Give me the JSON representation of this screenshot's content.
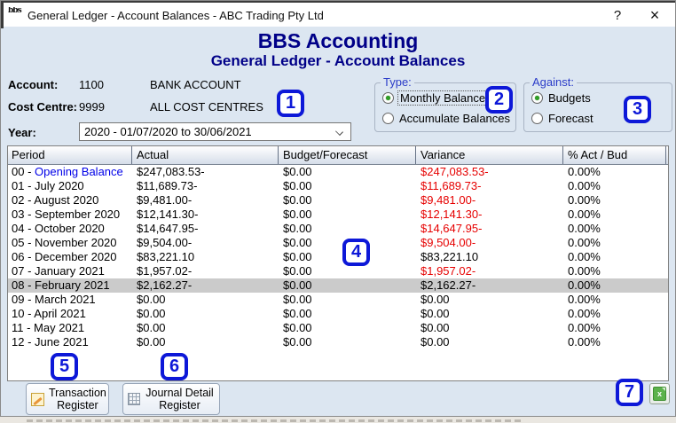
{
  "colors": {
    "navy": "#000088",
    "group_label_blue": "#2b3cc8",
    "link_blue": "#0000e8",
    "variance_red": "#e60000",
    "badge_blue": "#0d18d8",
    "selected_row_bg": "#cbcbcb",
    "dialog_bg": "#dce6f1"
  },
  "window": {
    "title": "General Ledger - Account Balances - ABC Trading Pty Ltd",
    "logo_text": "bbs",
    "help_label": "?",
    "close_label": "×"
  },
  "header": {
    "app_title": "BBS Accounting",
    "screen_title": "General Ledger - Account Balances"
  },
  "info": {
    "account_label": "Account:",
    "account_code": "1100",
    "account_name": "BANK ACCOUNT",
    "cost_centre_label": "Cost Centre:",
    "cost_centre_code": "9999",
    "cost_centre_name": "ALL COST CENTRES",
    "year_label": "Year:",
    "year_value": "2020 - 01/07/2020 to 30/06/2021"
  },
  "type_group": {
    "label": "Type:",
    "options": [
      {
        "label": "Monthly Balances",
        "selected": true
      },
      {
        "label": "Accumulate Balances",
        "selected": false
      }
    ]
  },
  "against_group": {
    "label": "Against:",
    "options": [
      {
        "label": "Budgets",
        "selected": true
      },
      {
        "label": "Forecast",
        "selected": false
      }
    ]
  },
  "table": {
    "columns": [
      "Period",
      "Actual",
      "Budget/Forecast",
      "Variance",
      "% Act / Bud"
    ],
    "rows": [
      {
        "period": "00 - Opening Balance",
        "actual": "$247,083.53-",
        "budget": "$0.00",
        "variance": "$247,083.53-",
        "pct": "0.00%",
        "variance_red": true,
        "selected": false,
        "period_link": true
      },
      {
        "period": "01 - July 2020",
        "actual": "$11,689.73-",
        "budget": "$0.00",
        "variance": "$11,689.73-",
        "pct": "0.00%",
        "variance_red": true,
        "selected": false,
        "period_link": false
      },
      {
        "period": "02 - August 2020",
        "actual": "$9,481.00-",
        "budget": "$0.00",
        "variance": "$9,481.00-",
        "pct": "0.00%",
        "variance_red": true,
        "selected": false,
        "period_link": false
      },
      {
        "period": "03 - September 2020",
        "actual": "$12,141.30-",
        "budget": "$0.00",
        "variance": "$12,141.30-",
        "pct": "0.00%",
        "variance_red": true,
        "selected": false,
        "period_link": false
      },
      {
        "period": "04 - October 2020",
        "actual": "$14,647.95-",
        "budget": "$0.00",
        "variance": "$14,647.95-",
        "pct": "0.00%",
        "variance_red": true,
        "selected": false,
        "period_link": false
      },
      {
        "period": "05 - November 2020",
        "actual": "$9,504.00-",
        "budget": "$0.00",
        "variance": "$9,504.00-",
        "pct": "0.00%",
        "variance_red": true,
        "selected": false,
        "period_link": false
      },
      {
        "period": "06 - December 2020",
        "actual": "$83,221.10",
        "budget": "$0.00",
        "variance": "$83,221.10",
        "pct": "0.00%",
        "variance_red": false,
        "selected": false,
        "period_link": false
      },
      {
        "period": "07 - January 2021",
        "actual": "$1,957.02-",
        "budget": "$0.00",
        "variance": "$1,957.02-",
        "pct": "0.00%",
        "variance_red": true,
        "selected": false,
        "period_link": false
      },
      {
        "period": "08 - February 2021",
        "actual": "$2,162.27-",
        "budget": "$0.00",
        "variance": "$2,162.27-",
        "pct": "0.00%",
        "variance_red": false,
        "selected": true,
        "period_link": false
      },
      {
        "period": "09 - March 2021",
        "actual": "$0.00",
        "budget": "$0.00",
        "variance": "$0.00",
        "pct": "0.00%",
        "variance_red": false,
        "selected": false,
        "period_link": false
      },
      {
        "period": "10 - April 2021",
        "actual": "$0.00",
        "budget": "$0.00",
        "variance": "$0.00",
        "pct": "0.00%",
        "variance_red": false,
        "selected": false,
        "period_link": false
      },
      {
        "period": "11 - May 2021",
        "actual": "$0.00",
        "budget": "$0.00",
        "variance": "$0.00",
        "pct": "0.00%",
        "variance_red": false,
        "selected": false,
        "period_link": false
      },
      {
        "period": "12 - June 2021",
        "actual": "$0.00",
        "budget": "$0.00",
        "variance": "$0.00",
        "pct": "0.00%",
        "variance_red": false,
        "selected": false,
        "period_link": false
      }
    ]
  },
  "footer": {
    "transaction_register": "Transaction Register",
    "journal_detail_register": "Journal Detail Register",
    "export_icon": "excel-export-icon",
    "export_glyph": "x"
  },
  "annotations": [
    "1",
    "2",
    "3",
    "4",
    "5",
    "6",
    "7"
  ]
}
